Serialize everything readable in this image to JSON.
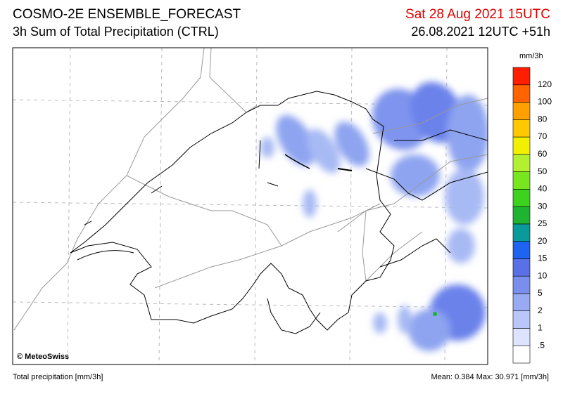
{
  "header": {
    "title": "COSMO-2E ENSEMBLE_FORECAST",
    "subtitle": "3h Sum of Total Precipitation (CTRL)",
    "valid_time": "Sat 28 Aug 2021 15UTC",
    "run_time": "26.08.2021 12UTC +51h"
  },
  "colorbar": {
    "unit": "mm/3h",
    "labels": [
      ".5",
      "1",
      "2",
      "5",
      "10",
      "15",
      "20",
      "25",
      "30",
      "40",
      "50",
      "60",
      "70",
      "80",
      "100",
      "120"
    ],
    "colors": [
      "#ffffff",
      "#dce4ff",
      "#b8c6fa",
      "#98aaf2",
      "#7a8eee",
      "#5a70e6",
      "#1e64f0",
      "#0a9a9a",
      "#1eb432",
      "#3cd21e",
      "#78e61e",
      "#b4f032",
      "#f0f000",
      "#ffc800",
      "#ffa000",
      "#ff6400",
      "#ff1e00"
    ]
  },
  "footer": {
    "copyright": "© MeteoSwiss",
    "left": "Total precipitation [mm/3h]",
    "right": "Mean:   0.384 Max:  30.971 [mm/3h]"
  }
}
